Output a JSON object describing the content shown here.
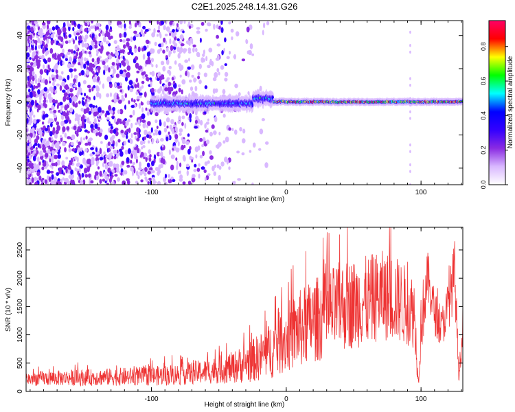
{
  "figure_title": "C2E1.2025.248.14.31.G26",
  "chart_data": [
    {
      "type": "heatmap",
      "name": "spectrogram",
      "xlabel": "Height of straight line (km)",
      "ylabel": "Frequency (Hz)",
      "xlim": [
        -193,
        131
      ],
      "ylim": [
        -50,
        49
      ],
      "xticks": [
        -100,
        0,
        100
      ],
      "xtick_labels": [
        "-100",
        "0",
        "100"
      ],
      "yticks": [
        -40,
        -20,
        0,
        20,
        40
      ],
      "ytick_labels": [
        "-40",
        "-20",
        "0",
        "20",
        "40"
      ],
      "colorbar": {
        "label": "Normalized spectral amplitude",
        "range": [
          0,
          0.95
        ],
        "ticks": [
          0,
          0.2,
          0.4,
          0.6,
          0.8
        ],
        "tick_labels": [
          "0.0",
          "0.2",
          "0.4",
          "0.6",
          "0.8"
        ],
        "colors": [
          "#ffffff",
          "#d9b8ff",
          "#8a2be2",
          "#3300ff",
          "#0000ff",
          "#00ffff",
          "#00ff00",
          "#ffff00",
          "#ff0000",
          "#ff0066"
        ]
      },
      "regions": [
        {
          "name": "scattered noise",
          "x_range": [
            -193,
            -30
          ],
          "amplitude": 0.2
        },
        {
          "name": "signal trace",
          "x_range": [
            -100,
            131
          ],
          "center_hz": 0,
          "amplitude": 0.85
        }
      ]
    },
    {
      "type": "line",
      "name": "snr",
      "xlabel": "Height of straight line (km)",
      "ylabel": "SNR (10 * v/v)",
      "xlim": [
        -193,
        131
      ],
      "ylim": [
        0,
        2900
      ],
      "xticks": [
        -100,
        0,
        100
      ],
      "xtick_labels": [
        "-100",
        "0",
        "100"
      ],
      "yticks": [
        0,
        500,
        1000,
        1500,
        2000,
        2500
      ],
      "ytick_labels": [
        "0",
        "500",
        "1000",
        "1500",
        "2000",
        "2500"
      ],
      "color": "#ee3333",
      "series": [
        {
          "name": "SNR",
          "x": [
            -193,
            -180,
            -160,
            -140,
            -120,
            -100,
            -80,
            -60,
            -40,
            -30,
            -20,
            -10,
            0,
            10,
            20,
            30,
            40,
            50,
            60,
            70,
            80,
            90,
            95,
            98,
            100,
            105,
            110,
            115,
            120,
            125,
            128,
            131
          ],
          "y": [
            220,
            230,
            240,
            250,
            260,
            270,
            300,
            350,
            420,
            500,
            600,
            750,
            950,
            1100,
            1250,
            1350,
            1500,
            1550,
            1600,
            1700,
            1650,
            1500,
            1400,
            150,
            1200,
            2000,
            1400,
            1100,
            1500,
            2100,
            300,
            1000
          ],
          "spread": [
            120,
            130,
            140,
            150,
            160,
            170,
            190,
            220,
            280,
            350,
            420,
            520,
            620,
            700,
            750,
            780,
            800,
            800,
            800,
            800,
            780,
            700,
            650,
            100,
            600,
            500,
            400,
            350,
            450,
            600,
            150,
            300
          ]
        }
      ]
    }
  ]
}
